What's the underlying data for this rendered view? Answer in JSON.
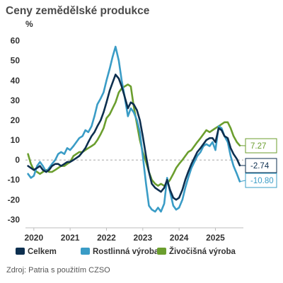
{
  "chart_data": {
    "type": "line",
    "title": "Ceny zemědělské produkce",
    "ylabel": "%",
    "xlabel": "",
    "source": "Zdroj: Patria s použitím CZSO",
    "ylim": [
      -32,
      62
    ],
    "xlim": [
      2019.85,
      2025.85
    ],
    "yticks": [
      -30,
      -20,
      -10,
      0,
      10,
      20,
      30,
      40,
      50,
      60
    ],
    "xticks": [
      {
        "label": "2020",
        "value": 2020.08
      },
      {
        "label": "2021",
        "value": 2021.08
      },
      {
        "label": "2022",
        "value": 2022.08
      },
      {
        "label": "2023",
        "value": 2023.08
      },
      {
        "label": "2024",
        "value": 2024.08
      },
      {
        "label": "2025",
        "value": 2025.08
      }
    ],
    "zero_line": "dashed",
    "grid": false,
    "legend_position": "bottom",
    "series": [
      {
        "name": "Celkem",
        "color": "#0d2f4f",
        "end_label": "-2.74",
        "points": [
          [
            2019.92,
            -3
          ],
          [
            2020.0,
            -4
          ],
          [
            2020.08,
            -5
          ],
          [
            2020.17,
            -4
          ],
          [
            2020.25,
            -3
          ],
          [
            2020.33,
            -5
          ],
          [
            2020.42,
            -6
          ],
          [
            2020.5,
            -5
          ],
          [
            2020.58,
            -3
          ],
          [
            2020.67,
            -2
          ],
          [
            2020.75,
            -2
          ],
          [
            2020.83,
            -3
          ],
          [
            2020.92,
            -2
          ],
          [
            2021.0,
            -1
          ],
          [
            2021.08,
            -1
          ],
          [
            2021.17,
            0
          ],
          [
            2021.25,
            1
          ],
          [
            2021.33,
            2
          ],
          [
            2021.42,
            4
          ],
          [
            2021.5,
            6
          ],
          [
            2021.58,
            9
          ],
          [
            2021.67,
            12
          ],
          [
            2021.75,
            14
          ],
          [
            2021.83,
            17
          ],
          [
            2021.92,
            20
          ],
          [
            2022.0,
            24
          ],
          [
            2022.08,
            29
          ],
          [
            2022.17,
            35
          ],
          [
            2022.25,
            39
          ],
          [
            2022.33,
            43
          ],
          [
            2022.42,
            41
          ],
          [
            2022.5,
            37
          ],
          [
            2022.58,
            32
          ],
          [
            2022.67,
            26
          ],
          [
            2022.75,
            29
          ],
          [
            2022.83,
            28
          ],
          [
            2022.92,
            25
          ],
          [
            2023.0,
            20
          ],
          [
            2023.08,
            12
          ],
          [
            2023.17,
            2
          ],
          [
            2023.25,
            -6
          ],
          [
            2023.33,
            -12
          ],
          [
            2023.42,
            -14
          ],
          [
            2023.5,
            -15
          ],
          [
            2023.58,
            -16
          ],
          [
            2023.67,
            -14
          ],
          [
            2023.75,
            -10
          ],
          [
            2023.83,
            -15
          ],
          [
            2023.92,
            -19
          ],
          [
            2024.0,
            -20
          ],
          [
            2024.08,
            -19
          ],
          [
            2024.17,
            -15
          ],
          [
            2024.25,
            -10
          ],
          [
            2024.33,
            -6
          ],
          [
            2024.42,
            -2
          ],
          [
            2024.5,
            1
          ],
          [
            2024.58,
            4
          ],
          [
            2024.67,
            6
          ],
          [
            2024.75,
            8
          ],
          [
            2024.83,
            10
          ],
          [
            2024.92,
            11
          ],
          [
            2025.0,
            11
          ],
          [
            2025.08,
            9
          ],
          [
            2025.17,
            16
          ],
          [
            2025.25,
            15
          ],
          [
            2025.33,
            12
          ],
          [
            2025.42,
            11
          ],
          [
            2025.5,
            6
          ],
          [
            2025.58,
            3
          ],
          [
            2025.67,
            0.5
          ],
          [
            2025.75,
            -2.74
          ]
        ]
      },
      {
        "name": "Rostlinná výroba",
        "color": "#3a9cc6",
        "end_label": "-10.80",
        "points": [
          [
            2019.92,
            -7
          ],
          [
            2020.0,
            -9
          ],
          [
            2020.08,
            -8
          ],
          [
            2020.17,
            -3
          ],
          [
            2020.25,
            -1
          ],
          [
            2020.33,
            -3
          ],
          [
            2020.42,
            -6
          ],
          [
            2020.5,
            -4
          ],
          [
            2020.58,
            -2
          ],
          [
            2020.67,
            0
          ],
          [
            2020.75,
            3
          ],
          [
            2020.83,
            4
          ],
          [
            2020.92,
            3
          ],
          [
            2021.0,
            6
          ],
          [
            2021.08,
            5
          ],
          [
            2021.17,
            7
          ],
          [
            2021.25,
            9
          ],
          [
            2021.33,
            11
          ],
          [
            2021.42,
            12
          ],
          [
            2021.5,
            15
          ],
          [
            2021.58,
            14
          ],
          [
            2021.67,
            17
          ],
          [
            2021.75,
            22
          ],
          [
            2021.83,
            28
          ],
          [
            2021.92,
            31
          ],
          [
            2022.0,
            34
          ],
          [
            2022.08,
            40
          ],
          [
            2022.17,
            46
          ],
          [
            2022.25,
            52
          ],
          [
            2022.33,
            57
          ],
          [
            2022.42,
            50
          ],
          [
            2022.5,
            40
          ],
          [
            2022.58,
            32
          ],
          [
            2022.67,
            22
          ],
          [
            2022.75,
            26
          ],
          [
            2022.83,
            24
          ],
          [
            2022.92,
            20
          ],
          [
            2023.0,
            14
          ],
          [
            2023.08,
            2
          ],
          [
            2023.17,
            -12
          ],
          [
            2023.25,
            -23
          ],
          [
            2023.33,
            -25
          ],
          [
            2023.42,
            -26
          ],
          [
            2023.5,
            -24
          ],
          [
            2023.58,
            -26
          ],
          [
            2023.67,
            -22
          ],
          [
            2023.75,
            -9
          ],
          [
            2023.83,
            -16
          ],
          [
            2023.92,
            -23
          ],
          [
            2024.0,
            -25
          ],
          [
            2024.08,
            -24
          ],
          [
            2024.17,
            -20
          ],
          [
            2024.25,
            -14
          ],
          [
            2024.33,
            -9
          ],
          [
            2024.42,
            -4
          ],
          [
            2024.5,
            -1
          ],
          [
            2024.58,
            2
          ],
          [
            2024.67,
            4
          ],
          [
            2024.75,
            7
          ],
          [
            2024.83,
            8
          ],
          [
            2024.92,
            7
          ],
          [
            2025.0,
            9
          ],
          [
            2025.08,
            5
          ],
          [
            2025.17,
            17
          ],
          [
            2025.25,
            16
          ],
          [
            2025.33,
            12
          ],
          [
            2025.42,
            9
          ],
          [
            2025.5,
            2
          ],
          [
            2025.58,
            -3
          ],
          [
            2025.67,
            -7
          ],
          [
            2025.75,
            -10.8
          ]
        ]
      },
      {
        "name": "Živočišná výroba",
        "color": "#6b9e2e",
        "end_label": "7.27",
        "points": [
          [
            2019.92,
            3
          ],
          [
            2020.0,
            -2
          ],
          [
            2020.08,
            -5
          ],
          [
            2020.17,
            -6
          ],
          [
            2020.25,
            -7
          ],
          [
            2020.33,
            -6
          ],
          [
            2020.42,
            -5
          ],
          [
            2020.5,
            -6
          ],
          [
            2020.58,
            -6
          ],
          [
            2020.67,
            -5
          ],
          [
            2020.75,
            -4
          ],
          [
            2020.83,
            -3
          ],
          [
            2020.92,
            -3
          ],
          [
            2021.0,
            -2
          ],
          [
            2021.08,
            -1
          ],
          [
            2021.17,
            2
          ],
          [
            2021.25,
            3
          ],
          [
            2021.33,
            4
          ],
          [
            2021.42,
            4
          ],
          [
            2021.5,
            5
          ],
          [
            2021.58,
            6
          ],
          [
            2021.67,
            7
          ],
          [
            2021.75,
            8
          ],
          [
            2021.83,
            10
          ],
          [
            2021.92,
            13
          ],
          [
            2022.0,
            16
          ],
          [
            2022.08,
            21
          ],
          [
            2022.17,
            23
          ],
          [
            2022.25,
            26
          ],
          [
            2022.33,
            29
          ],
          [
            2022.42,
            34
          ],
          [
            2022.5,
            36
          ],
          [
            2022.58,
            37
          ],
          [
            2022.67,
            38
          ],
          [
            2022.75,
            37
          ],
          [
            2022.83,
            27
          ],
          [
            2022.92,
            18
          ],
          [
            2023.0,
            10
          ],
          [
            2023.08,
            4
          ],
          [
            2023.17,
            -1
          ],
          [
            2023.25,
            -6
          ],
          [
            2023.33,
            -10
          ],
          [
            2023.42,
            -12
          ],
          [
            2023.5,
            -13
          ],
          [
            2023.58,
            -12
          ],
          [
            2023.67,
            -13
          ],
          [
            2023.75,
            -12
          ],
          [
            2023.83,
            -10
          ],
          [
            2023.92,
            -7
          ],
          [
            2024.0,
            -4
          ],
          [
            2024.08,
            -2
          ],
          [
            2024.17,
            0
          ],
          [
            2024.25,
            2
          ],
          [
            2024.33,
            4
          ],
          [
            2024.42,
            5
          ],
          [
            2024.5,
            7
          ],
          [
            2024.58,
            9
          ],
          [
            2024.67,
            11
          ],
          [
            2024.75,
            13
          ],
          [
            2024.83,
            15
          ],
          [
            2024.92,
            14
          ],
          [
            2025.0,
            15
          ],
          [
            2025.08,
            16
          ],
          [
            2025.17,
            17
          ],
          [
            2025.25,
            18
          ],
          [
            2025.33,
            19
          ],
          [
            2025.42,
            19
          ],
          [
            2025.5,
            16
          ],
          [
            2025.58,
            12
          ],
          [
            2025.67,
            9
          ],
          [
            2025.75,
            7.27
          ]
        ]
      }
    ]
  }
}
